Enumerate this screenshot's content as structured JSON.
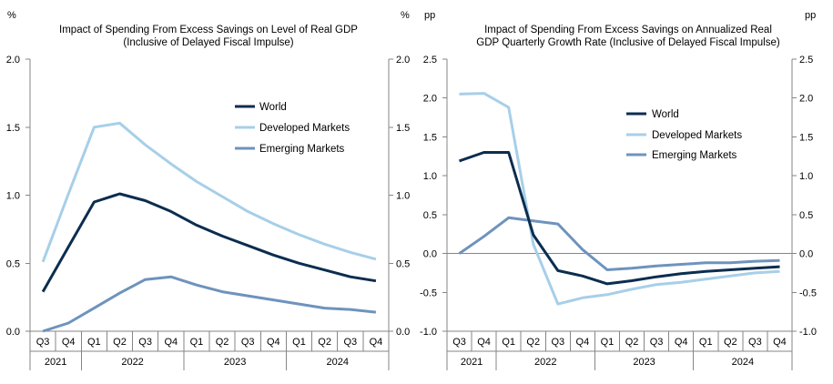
{
  "colors": {
    "world": "#0b2d4f",
    "developed": "#a7cfe8",
    "emerging": "#6e93bd",
    "axis": "#868686"
  },
  "chart_data": [
    {
      "type": "line",
      "title": "Impact of Spending From Excess Savings on Level of Real GDP",
      "subtitle": "(Inclusive of Delayed Fiscal Impulse)",
      "left_unit": "%",
      "right_unit": "%",
      "ylim": [
        0,
        2
      ],
      "yticks": [
        "0.0",
        "0.5",
        "1.0",
        "1.5",
        "2.0"
      ],
      "categories": [
        "Q3",
        "Q4",
        "Q1",
        "Q2",
        "Q3",
        "Q4",
        "Q1",
        "Q2",
        "Q3",
        "Q4",
        "Q1",
        "Q2",
        "Q3",
        "Q4"
      ],
      "years": [
        {
          "label": "2021",
          "span": 2
        },
        {
          "label": "2022",
          "span": 4
        },
        {
          "label": "2023",
          "span": 4
        },
        {
          "label": "2024",
          "span": 4
        }
      ],
      "legend": {
        "position": "upper-right"
      },
      "series": [
        {
          "name": "World",
          "key": "world",
          "values": [
            0.29,
            0.62,
            0.95,
            1.01,
            0.96,
            0.88,
            0.78,
            0.7,
            0.63,
            0.56,
            0.5,
            0.45,
            0.4,
            0.37
          ]
        },
        {
          "name": "Developed Markets",
          "key": "developed",
          "values": [
            0.51,
            1.01,
            1.5,
            1.53,
            1.37,
            1.23,
            1.1,
            0.99,
            0.88,
            0.79,
            0.71,
            0.64,
            0.58,
            0.53
          ]
        },
        {
          "name": "Emerging Markets",
          "key": "emerging",
          "values": [
            0.0,
            0.06,
            0.17,
            0.28,
            0.38,
            0.4,
            0.34,
            0.29,
            0.26,
            0.23,
            0.2,
            0.17,
            0.16,
            0.14
          ]
        }
      ]
    },
    {
      "type": "line",
      "title": "Impact of Spending From Excess Savings on Annualized Real",
      "subtitle": "GDP Quarterly Growth Rate (Inclusive of Delayed Fiscal Impulse)",
      "left_unit": "pp",
      "right_unit": "pp",
      "ylim": [
        -1,
        2.5
      ],
      "yticks": [
        "-1.0",
        "-0.5",
        "0.0",
        "0.5",
        "1.0",
        "1.5",
        "2.0",
        "2.5"
      ],
      "categories": [
        "Q3",
        "Q4",
        "Q1",
        "Q2",
        "Q3",
        "Q4",
        "Q1",
        "Q2",
        "Q3",
        "Q4",
        "Q1",
        "Q2",
        "Q3",
        "Q4"
      ],
      "years": [
        {
          "label": "2021",
          "span": 2
        },
        {
          "label": "2022",
          "span": 4
        },
        {
          "label": "2023",
          "span": 4
        },
        {
          "label": "2024",
          "span": 4
        }
      ],
      "legend": {
        "position": "upper-right"
      },
      "series": [
        {
          "name": "World",
          "key": "world",
          "values": [
            1.19,
            1.3,
            1.3,
            0.24,
            -0.22,
            -0.29,
            -0.39,
            -0.35,
            -0.3,
            -0.26,
            -0.23,
            -0.21,
            -0.19,
            -0.17
          ]
        },
        {
          "name": "Developed Markets",
          "key": "developed",
          "values": [
            2.05,
            2.06,
            1.88,
            0.12,
            -0.65,
            -0.57,
            -0.53,
            -0.46,
            -0.4,
            -0.37,
            -0.33,
            -0.29,
            -0.25,
            -0.23
          ]
        },
        {
          "name": "Emerging Markets",
          "key": "emerging",
          "values": [
            0.0,
            0.22,
            0.46,
            0.42,
            0.38,
            0.05,
            -0.21,
            -0.19,
            -0.16,
            -0.14,
            -0.12,
            -0.12,
            -0.1,
            -0.09
          ]
        }
      ]
    }
  ]
}
